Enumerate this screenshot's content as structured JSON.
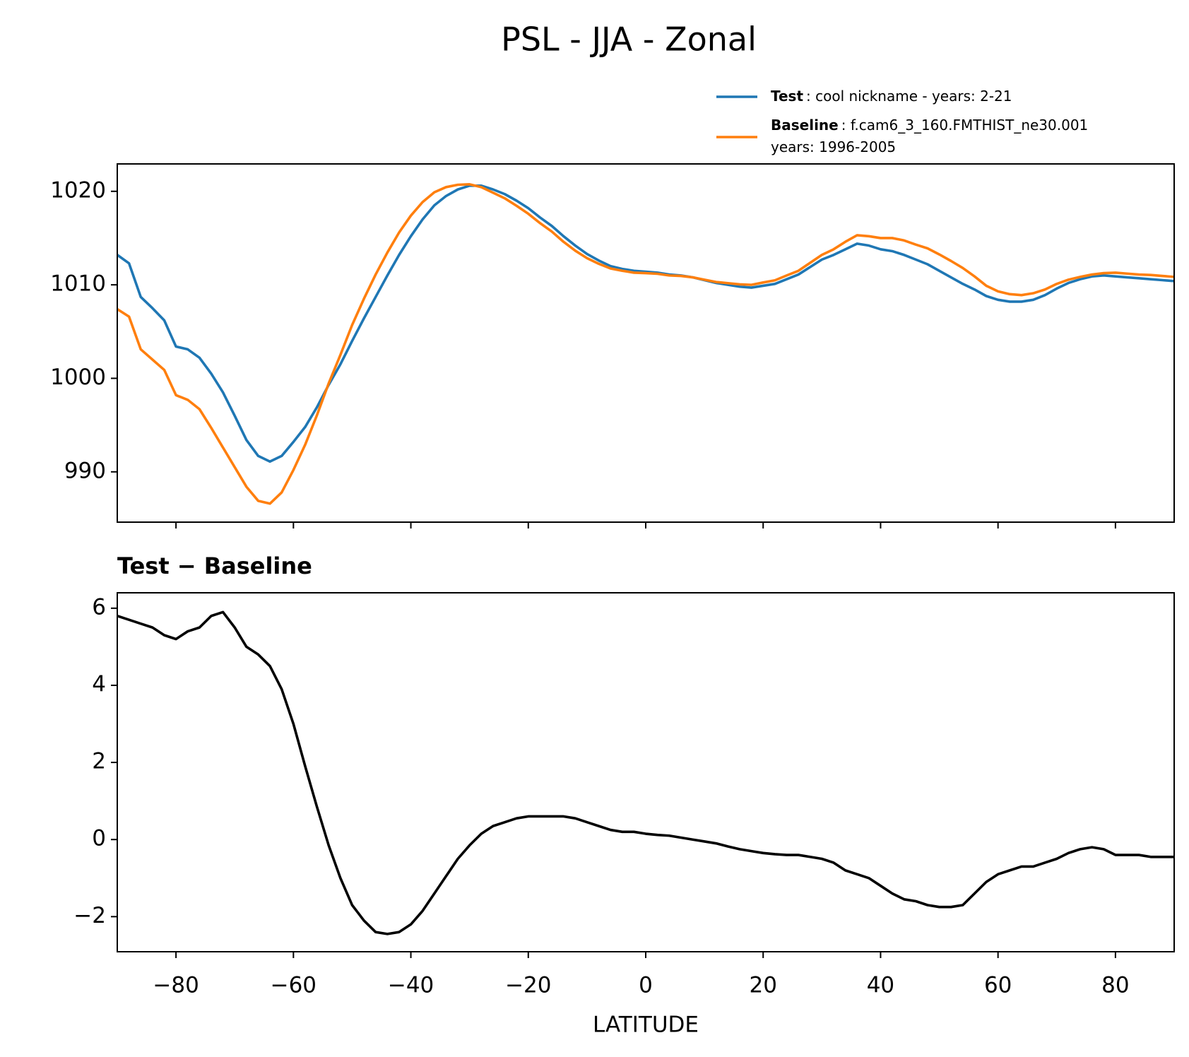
{
  "chart_data": [
    {
      "type": "line",
      "suptitle": "PSL - JJA - Zonal",
      "x": [
        -90,
        -88,
        -86,
        -84,
        -82,
        -80,
        -78,
        -76,
        -74,
        -72,
        -70,
        -68,
        -66,
        -64,
        -62,
        -60,
        -58,
        -56,
        -54,
        -52,
        -50,
        -48,
        -46,
        -44,
        -42,
        -40,
        -38,
        -36,
        -34,
        -32,
        -30,
        -28,
        -26,
        -24,
        -22,
        -20,
        -18,
        -16,
        -14,
        -12,
        -10,
        -8,
        -6,
        -4,
        -2,
        0,
        2,
        4,
        6,
        8,
        10,
        12,
        14,
        16,
        18,
        20,
        22,
        24,
        26,
        28,
        30,
        32,
        34,
        36,
        38,
        40,
        42,
        44,
        46,
        48,
        50,
        52,
        54,
        56,
        58,
        60,
        62,
        64,
        66,
        68,
        70,
        72,
        74,
        76,
        78,
        80,
        82,
        84,
        86,
        88,
        90
      ],
      "series": [
        {
          "name": "Test",
          "description": [
            ": cool nickname - years: 2-21"
          ],
          "color": "#1f77b4",
          "values": [
            1013.2,
            1012.3,
            1008.7,
            1007.5,
            1006.2,
            1003.4,
            1003.1,
            1002.2,
            1000.5,
            998.5,
            996.0,
            993.4,
            991.7,
            991.1,
            991.7,
            993.2,
            994.8,
            996.9,
            999.3,
            1001.5,
            1004.0,
            1006.4,
            1008.7,
            1011.0,
            1013.2,
            1015.2,
            1017.0,
            1018.5,
            1019.5,
            1020.2,
            1020.6,
            1020.6,
            1020.2,
            1019.7,
            1019.0,
            1018.2,
            1017.2,
            1016.3,
            1015.2,
            1014.2,
            1013.3,
            1012.6,
            1012.0,
            1011.7,
            1011.5,
            1011.4,
            1011.3,
            1011.1,
            1011.0,
            1010.8,
            1010.5,
            1010.2,
            1010.0,
            1009.8,
            1009.7,
            1009.9,
            1010.1,
            1010.6,
            1011.1,
            1011.9,
            1012.7,
            1013.2,
            1013.8,
            1014.4,
            1014.2,
            1013.8,
            1013.6,
            1013.2,
            1012.7,
            1012.2,
            1011.5,
            1010.8,
            1010.1,
            1009.5,
            1008.8,
            1008.4,
            1008.2,
            1008.2,
            1008.4,
            1008.9,
            1009.6,
            1010.2,
            1010.6,
            1010.9,
            1011.0,
            1010.9,
            1010.8,
            1010.7,
            1010.6,
            1010.5,
            1010.4
          ]
        },
        {
          "name": "Baseline",
          "description": [
            ": f.cam6_3_160.FMTHIST_ne30.001",
            "years: 1996-2005"
          ],
          "color": "#ff7f0e",
          "values": [
            1007.4,
            1006.6,
            1003.1,
            1002.0,
            1000.9,
            998.2,
            997.7,
            996.7,
            994.7,
            992.6,
            990.5,
            988.4,
            986.9,
            986.6,
            987.8,
            990.2,
            992.9,
            996.05,
            999.45,
            1002.5,
            1005.7,
            1008.5,
            1011.1,
            1013.45,
            1015.6,
            1017.4,
            1018.85,
            1019.9,
            1020.45,
            1020.7,
            1020.75,
            1020.45,
            1019.85,
            1019.25,
            1018.45,
            1017.6,
            1016.6,
            1015.7,
            1014.6,
            1013.65,
            1012.85,
            1012.25,
            1011.75,
            1011.5,
            1011.3,
            1011.25,
            1011.18,
            1011.0,
            1010.95,
            1010.8,
            1010.55,
            1010.3,
            1010.18,
            1010.05,
            1010.0,
            1010.25,
            1010.48,
            1011.0,
            1011.5,
            1012.35,
            1013.2,
            1013.8,
            1014.6,
            1015.3,
            1015.2,
            1015.0,
            1015.0,
            1014.75,
            1014.3,
            1013.9,
            1013.25,
            1012.55,
            1011.8,
            1010.9,
            1009.9,
            1009.3,
            1009.0,
            1008.9,
            1009.1,
            1009.5,
            1010.1,
            1010.55,
            1010.85,
            1011.1,
            1011.25,
            1011.3,
            1011.2,
            1011.1,
            1011.05,
            1010.95,
            1010.85
          ]
        }
      ],
      "xlim": [
        -90,
        90
      ],
      "ylim": [
        984.62,
        1022.93
      ],
      "yticks": [
        990,
        1000,
        1010,
        1020
      ]
    },
    {
      "type": "line",
      "title": "Test − Baseline",
      "xlabel": "LATITUDE",
      "x": [
        -90,
        -88,
        -86,
        -84,
        -82,
        -80,
        -78,
        -76,
        -74,
        -72,
        -70,
        -68,
        -66,
        -64,
        -62,
        -60,
        -58,
        -56,
        -54,
        -52,
        -50,
        -48,
        -46,
        -44,
        -42,
        -40,
        -38,
        -36,
        -34,
        -32,
        -30,
        -28,
        -26,
        -24,
        -22,
        -20,
        -18,
        -16,
        -14,
        -12,
        -10,
        -8,
        -6,
        -4,
        -2,
        0,
        2,
        4,
        6,
        8,
        10,
        12,
        14,
        16,
        18,
        20,
        22,
        24,
        26,
        28,
        30,
        32,
        34,
        36,
        38,
        40,
        42,
        44,
        46,
        48,
        50,
        52,
        54,
        56,
        58,
        60,
        62,
        64,
        66,
        68,
        70,
        72,
        74,
        76,
        78,
        80,
        82,
        84,
        86,
        88,
        90
      ],
      "series": [
        {
          "color": "#000000",
          "values": [
            5.8,
            5.7,
            5.6,
            5.5,
            5.3,
            5.2,
            5.4,
            5.5,
            5.8,
            5.9,
            5.5,
            5.0,
            4.8,
            4.5,
            3.9,
            3.0,
            1.9,
            0.85,
            -0.15,
            -1.0,
            -1.7,
            -2.1,
            -2.4,
            -2.45,
            -2.4,
            -2.2,
            -1.85,
            -1.4,
            -0.95,
            -0.5,
            -0.15,
            0.15,
            0.35,
            0.45,
            0.55,
            0.6,
            0.6,
            0.6,
            0.6,
            0.55,
            0.45,
            0.35,
            0.25,
            0.2,
            0.2,
            0.15,
            0.12,
            0.1,
            0.05,
            0,
            -0.05,
            -0.1,
            -0.18,
            -0.25,
            -0.3,
            -0.35,
            -0.38,
            -0.4,
            -0.4,
            -0.45,
            -0.5,
            -0.6,
            -0.8,
            -0.9,
            -1.0,
            -1.2,
            -1.4,
            -1.55,
            -1.6,
            -1.7,
            -1.75,
            -1.75,
            -1.7,
            -1.4,
            -1.1,
            -0.9,
            -0.8,
            -0.7,
            -0.7,
            -0.6,
            -0.5,
            -0.35,
            -0.25,
            -0.2,
            -0.25,
            -0.4,
            -0.4,
            -0.4,
            -0.45,
            -0.45,
            -0.45
          ]
        }
      ],
      "xlim": [
        -90,
        90
      ],
      "ylim": [
        -2.91,
        6.4
      ],
      "xticks": [
        {
          "value": -80,
          "label": "−80"
        },
        {
          "value": -60,
          "label": "−60"
        },
        {
          "value": -40,
          "label": "−40"
        },
        {
          "value": -20,
          "label": "−20"
        },
        0,
        20,
        40,
        60,
        80
      ],
      "yticks": [
        {
          "value": -2,
          "label": "−2"
        },
        0,
        2,
        4,
        6
      ]
    }
  ]
}
